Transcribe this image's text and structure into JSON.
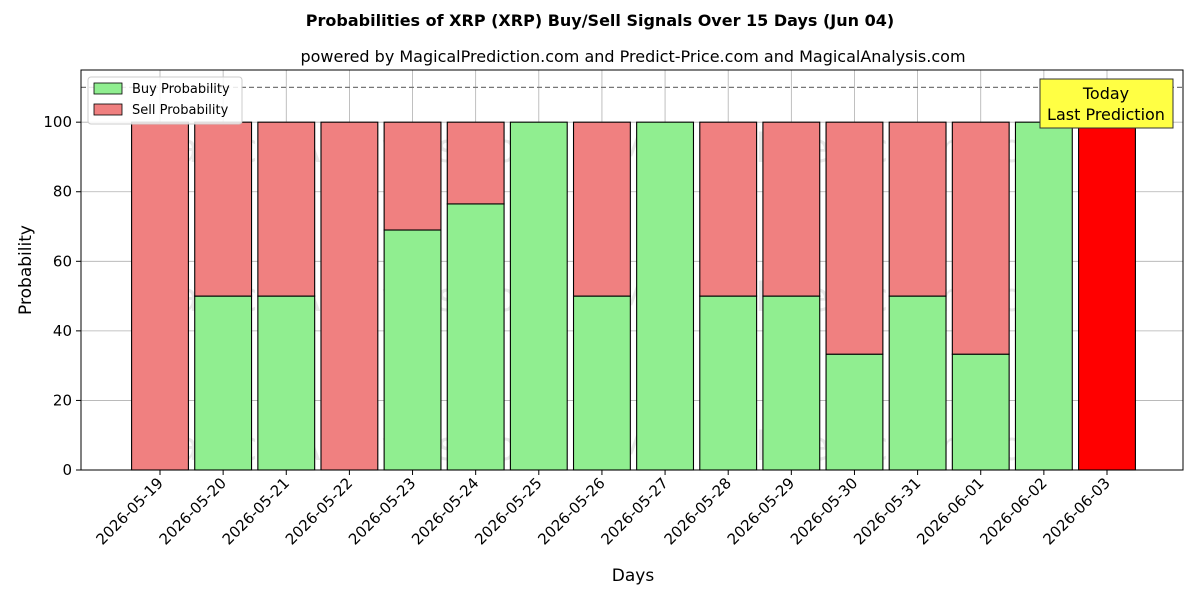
{
  "chart_data": {
    "type": "bar",
    "stacked": true,
    "title": "Probabilities of XRP (XRP) Buy/Sell Signals Over 15 Days (Jun 04)",
    "subtitle": "powered by MagicalPrediction.com and Predict-Price.com and MagicalAnalysis.com",
    "xlabel": "Days",
    "ylabel": "Probability",
    "ylim": [
      0,
      115
    ],
    "yticks": [
      0,
      20,
      40,
      60,
      80,
      100
    ],
    "reference_line": 110,
    "grid": true,
    "legend_position": "top-left",
    "categories": [
      "2026-05-19",
      "2026-05-20",
      "2026-05-21",
      "2026-05-22",
      "2026-05-23",
      "2026-05-24",
      "2026-05-25",
      "2026-05-26",
      "2026-05-27",
      "2026-05-28",
      "2026-05-29",
      "2026-05-30",
      "2026-05-31",
      "2026-06-01",
      "2026-06-02",
      "2026-06-03"
    ],
    "series": [
      {
        "name": "Buy Probability",
        "color": "#90ee90",
        "values": [
          0,
          50,
          50,
          0,
          69,
          76.5,
          100,
          50,
          100,
          50,
          50,
          33.3,
          50,
          33.3,
          100,
          0
        ]
      },
      {
        "name": "Sell Probability",
        "color": "#f08080",
        "values": [
          100,
          50,
          50,
          100,
          31,
          23.5,
          0,
          50,
          0,
          50,
          50,
          66.7,
          50,
          66.7,
          0,
          100
        ]
      }
    ],
    "highlight": {
      "index": 15,
      "color": "#ff0000"
    },
    "annotation": {
      "line1": "Today",
      "line2": "Last Prediction",
      "color": "#ffff44"
    },
    "watermarks": [
      "MagicalAnalysis.com",
      "MagicalPrediction.com"
    ]
  }
}
